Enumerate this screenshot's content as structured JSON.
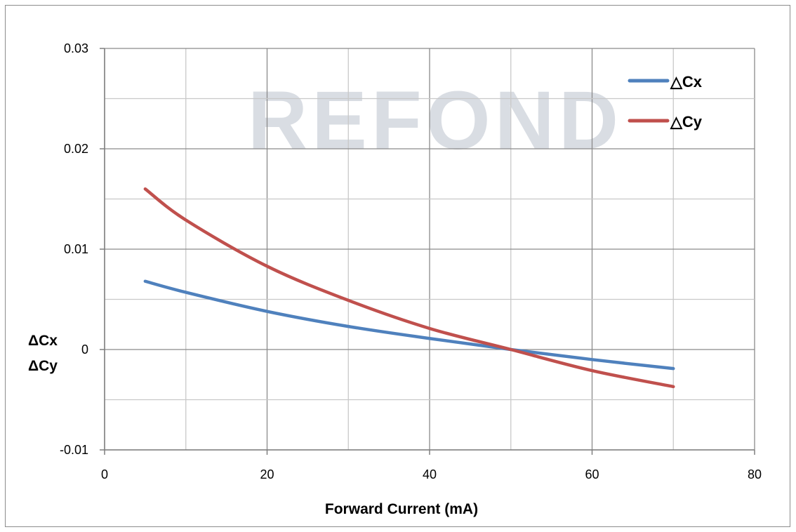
{
  "chart_data": {
    "type": "line",
    "title": "",
    "watermark": "REFOND",
    "xlabel": "Forward Current (mA)",
    "ylabel_lines": [
      "ΔCx",
      "ΔCy"
    ],
    "xlim": [
      0,
      80
    ],
    "ylim": [
      -0.01,
      0.03
    ],
    "x_ticks": [
      "0",
      "20",
      "40",
      "60",
      "80"
    ],
    "x_tick_values": [
      0,
      20,
      40,
      60,
      80
    ],
    "y_ticks": [
      "-0.01",
      "0",
      "0.01",
      "0.02",
      "0.03"
    ],
    "y_tick_values": [
      -0.01,
      0,
      0.01,
      0.02,
      0.03
    ],
    "grid": true,
    "legend_position": "top-right",
    "series": [
      {
        "name": "△Cx",
        "color": "#4f81bd",
        "x": [
          5,
          10,
          20,
          30,
          40,
          50,
          60,
          70
        ],
        "y": [
          0.0068,
          0.0057,
          0.0038,
          0.0023,
          0.0011,
          0.0,
          -0.001,
          -0.0019
        ]
      },
      {
        "name": "△Cy",
        "color": "#c0504d",
        "x": [
          5,
          10,
          20,
          30,
          40,
          50,
          60,
          70
        ],
        "y": [
          0.016,
          0.0129,
          0.0083,
          0.0049,
          0.0021,
          0.0,
          -0.0021,
          -0.0037
        ]
      }
    ]
  }
}
